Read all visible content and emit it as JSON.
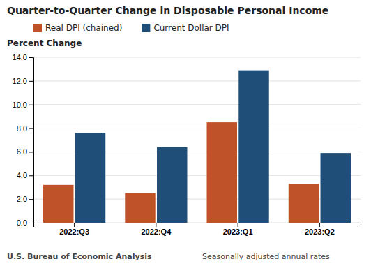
{
  "chart_data": {
    "type": "bar",
    "title": "Quarter-to-Quarter Change in Disposable Personal Income",
    "y_label": "Percent Change",
    "categories": [
      "2022:Q3",
      "2022:Q4",
      "2023:Q1",
      "2023:Q2"
    ],
    "series": [
      {
        "name": "Real DPI (chained)",
        "values": [
          3.2,
          2.5,
          8.5,
          3.3
        ],
        "color": "#C0522A"
      },
      {
        "name": "Current Dollar DPI",
        "values": [
          7.6,
          6.4,
          12.9,
          5.9
        ],
        "color": "#1F4E79"
      }
    ],
    "ylim": [
      0,
      14.0
    ],
    "yticks": [
      {
        "value": 0,
        "label": "0.0"
      },
      {
        "value": 2,
        "label": "2.0"
      },
      {
        "value": 4,
        "label": "4.0"
      },
      {
        "value": 6,
        "label": "6.0"
      },
      {
        "value": 8,
        "label": "8.0"
      },
      {
        "value": 10,
        "label": "10.0"
      },
      {
        "value": 12,
        "label": "12.0"
      },
      {
        "value": 14,
        "label": "14.0"
      }
    ],
    "grid": true,
    "legend": "top",
    "annotations": [
      "U.S. Bureau of Economic Analysis",
      "Seasonally adjusted annual rates"
    ]
  }
}
